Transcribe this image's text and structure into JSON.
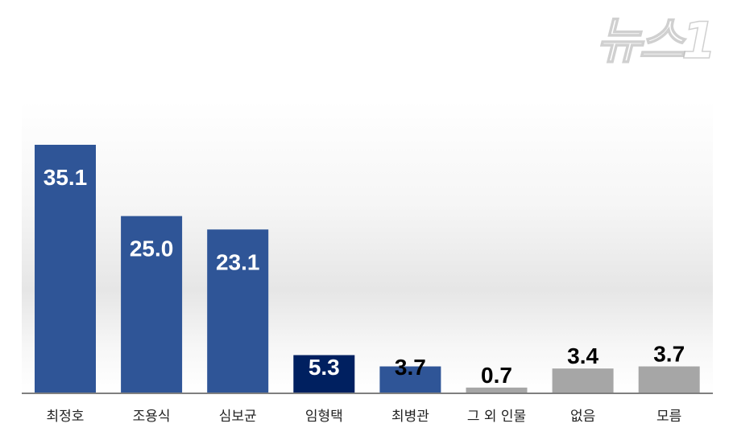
{
  "chart_data": {
    "type": "bar",
    "categories": [
      "최정호",
      "조용식",
      "심보균",
      "임형택",
      "최병관",
      "그 외 인물",
      "없음",
      "모름"
    ],
    "values": [
      35.1,
      25.0,
      23.1,
      5.3,
      3.7,
      0.7,
      3.4,
      3.7
    ],
    "data_labels": [
      "35.1",
      "25.0",
      "23.1",
      "5.3",
      "3.7",
      "0.7",
      "3.4",
      "3.7"
    ],
    "colors": [
      "#2f5597",
      "#2f5597",
      "#2f5597",
      "#002060",
      "#2f5597",
      "#a6a6a6",
      "#a6a6a6",
      "#a6a6a6"
    ],
    "label_colors": [
      "#ffffff",
      "#ffffff",
      "#ffffff",
      "#ffffff",
      "#000000",
      "#000000",
      "#000000",
      "#000000"
    ],
    "title": "",
    "xlabel": "",
    "ylabel": "",
    "ylim": [
      0,
      40
    ],
    "grid": false,
    "legend": "none"
  },
  "watermark": "뉴스1"
}
